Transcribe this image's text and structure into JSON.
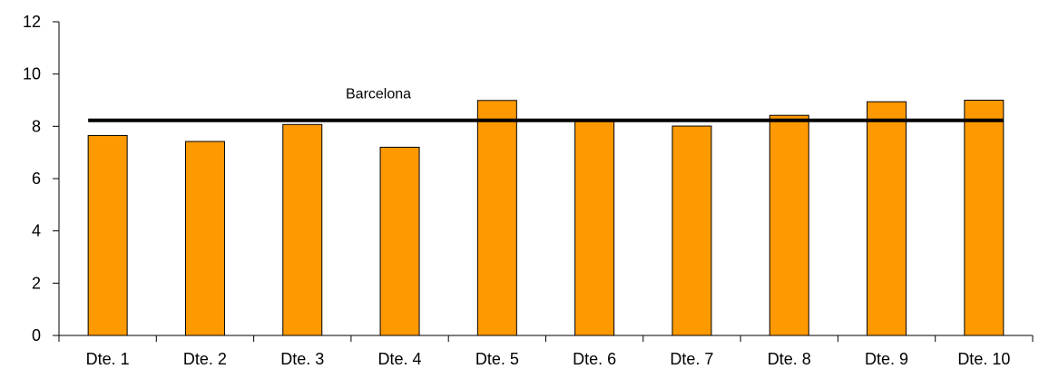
{
  "chart_data": {
    "type": "bar",
    "categories": [
      "Dte. 1",
      "Dte. 2",
      "Dte. 3",
      "Dte. 4",
      "Dte. 5",
      "Dte. 6",
      "Dte. 7",
      "Dte. 8",
      "Dte. 9",
      "Dte. 10"
    ],
    "values": [
      7.65,
      7.42,
      8.07,
      7.2,
      8.99,
      8.27,
      8.01,
      8.42,
      8.94,
      9.0
    ],
    "reference_line": {
      "label": "Barcelona",
      "value": 8.23
    },
    "ylim": [
      0,
      12
    ],
    "yticks": [
      0,
      2,
      4,
      6,
      8,
      10,
      12
    ],
    "title": "",
    "xlabel": "",
    "ylabel": "",
    "grid": false,
    "legend": "none",
    "colors": {
      "bar": "#FF9900",
      "bar_outline": "#000000",
      "reference_line": "#000000"
    }
  }
}
